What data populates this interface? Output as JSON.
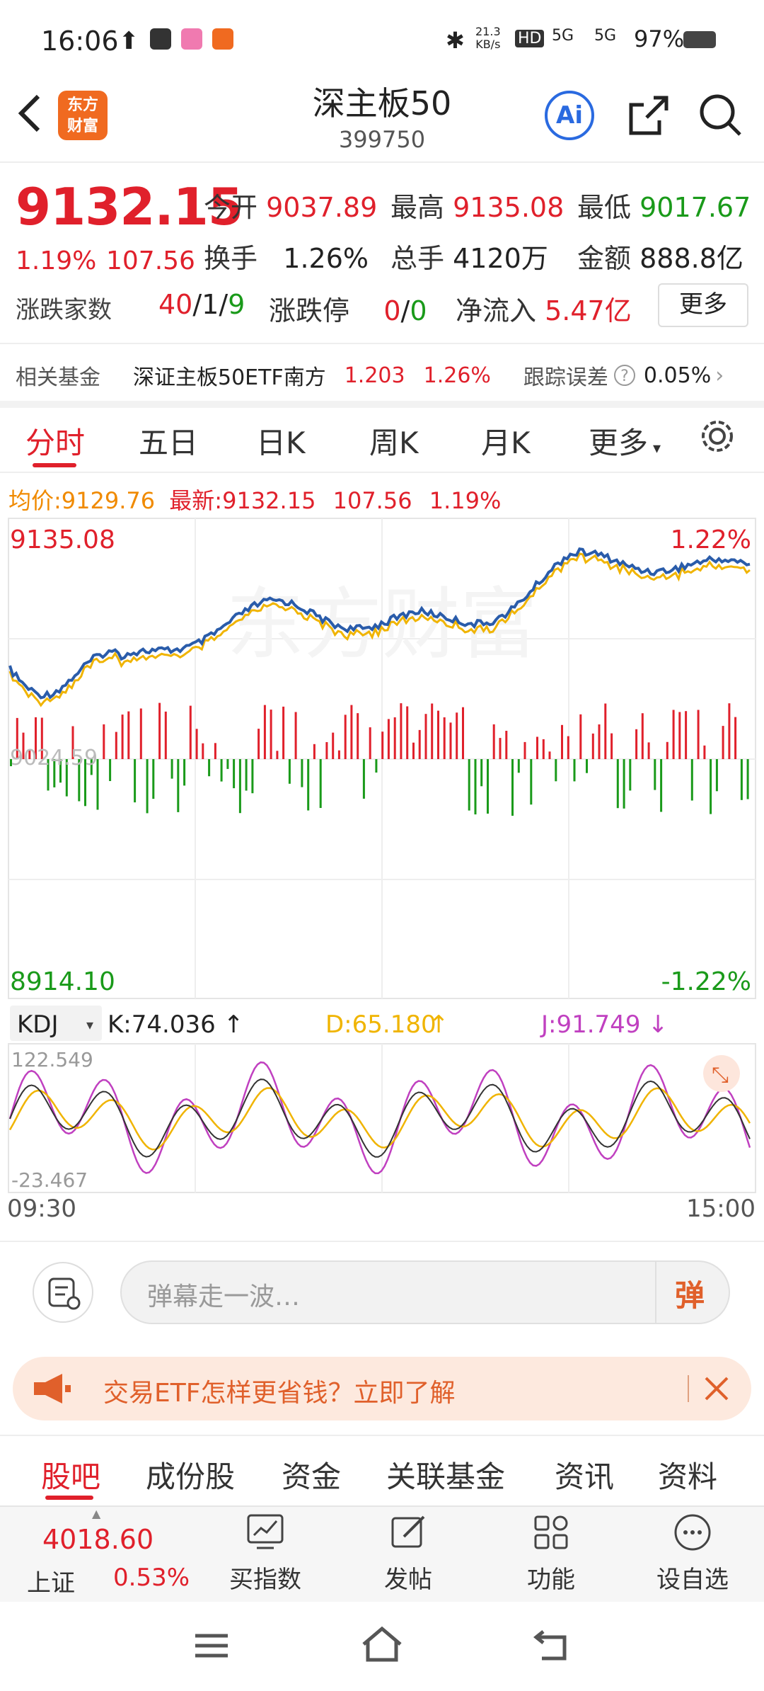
{
  "status": {
    "time": "16:06",
    "net_speed": "21.3",
    "net_unit": "KB/s",
    "sim1": "5G",
    "sim2": "5G",
    "hd": "HD",
    "battery": "97%"
  },
  "header": {
    "title": "深主板50",
    "code": "399750",
    "logo_top": "东方",
    "logo_bottom": "财富",
    "ai_label": "Ai"
  },
  "quote": {
    "price": "9132.15",
    "change_pct": "1.19%",
    "change": "107.56",
    "open_label": "今开",
    "open": "9037.89",
    "high_label": "最高",
    "high": "9135.08",
    "low_label": "最低",
    "low": "9017.67",
    "turnover_label": "换手",
    "turnover": "1.26%",
    "volume_label": "总手",
    "volume": "4120万",
    "amount_label": "金额",
    "amount": "888.8亿",
    "updown_label": "涨跌家数",
    "up": "40",
    "flat": "1",
    "down": "9",
    "slash": "/",
    "limit_label": "涨跌停",
    "limit_up": "0",
    "limit_down": "0",
    "inflow_label": "净流入",
    "inflow": "5.47亿",
    "more_label": "更多"
  },
  "fund": {
    "label": "相关基金",
    "name": "深证主板50ETF南方",
    "price": "1.203",
    "pct": "1.26%",
    "err_label": "跟踪误差",
    "err": "0.05%"
  },
  "tabs": [
    "分时",
    "五日",
    "日K",
    "周K",
    "月K",
    "更多"
  ],
  "chart": {
    "avg_label": "均价:",
    "avg": "9129.76",
    "latest_label": "最新:",
    "latest": "9132.15",
    "change": "107.56",
    "pct": "1.19%",
    "y_top": "9135.08",
    "y_top_pct": "1.22%",
    "y_bottom": "8914.10",
    "y_bottom_pct": "-1.22%",
    "y_mid": "9024.59",
    "watermark": "东方财富",
    "kdj_label": "KDJ",
    "k": "K:74.036",
    "d": "D:65.180",
    "j": "J:91.749",
    "kdj_top": "122.549",
    "kdj_bottom": "-23.467",
    "t_start": "09:30",
    "t_end": "15:00",
    "colors": {
      "price": "#2a5caa",
      "avg": "#f0b400",
      "up": "#e0202b",
      "down": "#1a9a1a",
      "k": "#333333",
      "d": "#f0b400",
      "j": "#c040c0"
    }
  },
  "comment": {
    "placeholder": "弹幕走一波…",
    "btn": "弹"
  },
  "banner": {
    "text": "交易ETF怎样更省钱？立即了解"
  },
  "bottom_tabs": [
    "股吧",
    "成份股",
    "资金",
    "关联基金",
    "资讯",
    "资料"
  ],
  "bottom_nav": {
    "index_value": "4018.60",
    "index_name": "上证",
    "index_pct": "0.53%",
    "buy": "买指数",
    "post": "发帖",
    "func": "功能",
    "watch": "设自选"
  }
}
